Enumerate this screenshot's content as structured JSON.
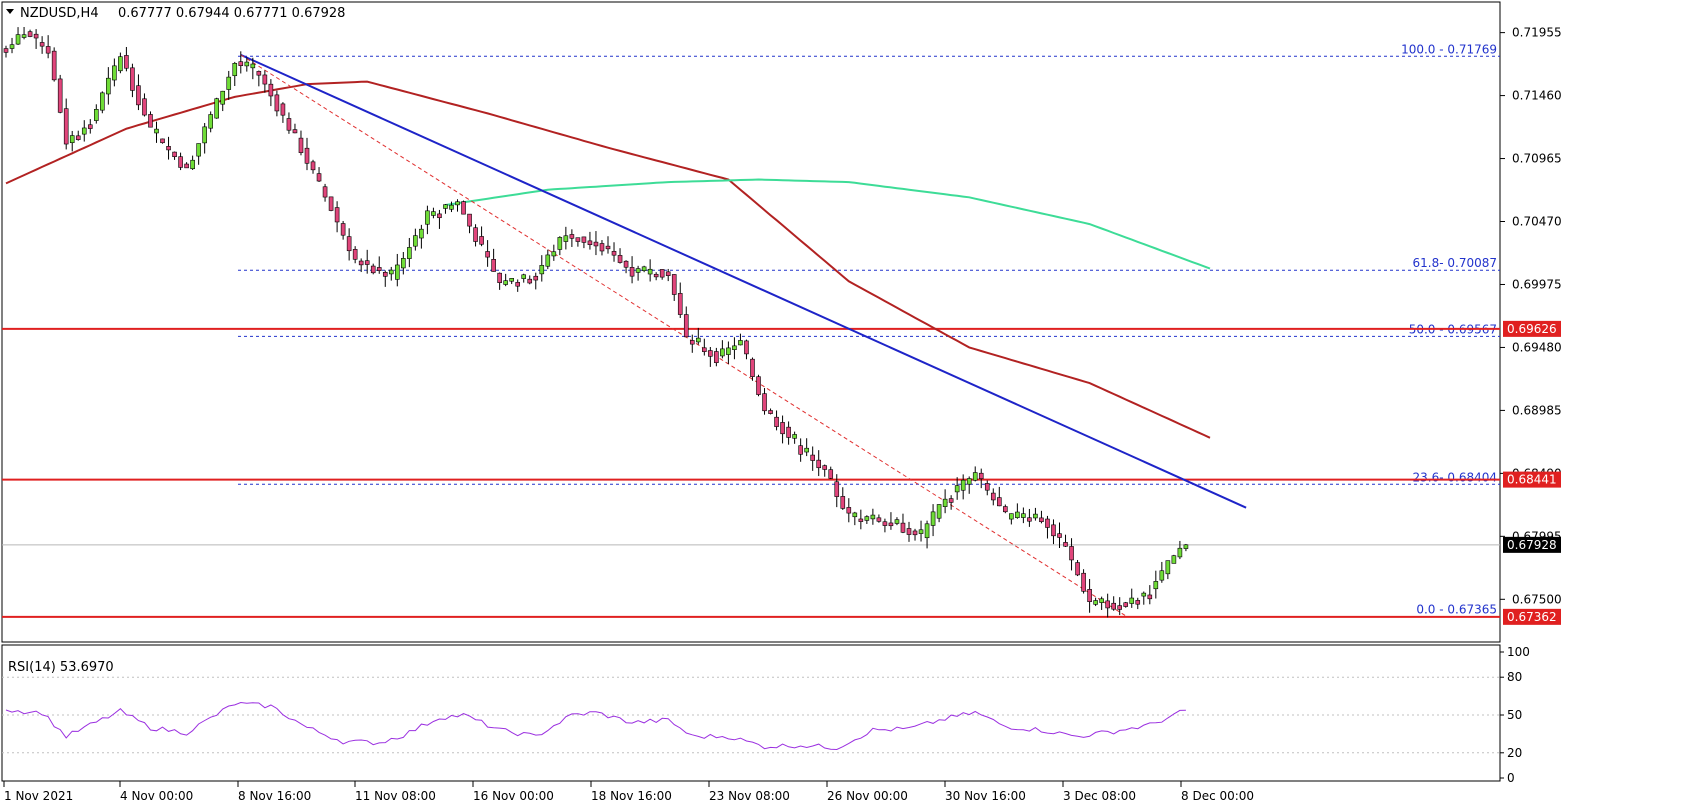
{
  "header": {
    "symbol": "NZDUSD,H4",
    "ohlc": "0.67777 0.67944 0.67771 0.67928"
  },
  "colors": {
    "bull": "#6fdc37",
    "bear": "#e0457b",
    "ma_red": "#b22222",
    "ma_green": "#3ddc97",
    "trendline": "#1e24c8",
    "fib_line": "#2233cc",
    "hline": "#e02020",
    "rsi": "#9b30e0",
    "price_tag": "#000000"
  },
  "chart_data": {
    "type": "candlestick",
    "title": "NZDUSD,H4",
    "price_axis": {
      "range": [
        0.6718,
        0.7218
      ],
      "ticks": [
        "0.71955",
        "0.71460",
        "0.70965",
        "0.70470",
        "0.69975",
        "0.69480",
        "0.68985",
        "0.68490",
        "0.67995",
        "0.67500"
      ]
    },
    "time_axis": {
      "labels": [
        "1 Nov 2021",
        "4 Nov 00:00",
        "8 Nov 16:00",
        "11 Nov 08:00",
        "16 Nov 00:00",
        "18 Nov 16:00",
        "23 Nov 08:00",
        "26 Nov 00:00",
        "30 Nov 16:00",
        "3 Dec 08:00",
        "8 Dec 00:00"
      ]
    },
    "candle_count": 197,
    "keypoints": [
      {
        "i": 0,
        "p": 0.7183
      },
      {
        "i": 3,
        "p": 0.7196
      },
      {
        "i": 7,
        "p": 0.7182
      },
      {
        "i": 10,
        "p": 0.711
      },
      {
        "i": 14,
        "p": 0.7125
      },
      {
        "i": 19,
        "p": 0.7178
      },
      {
        "i": 24,
        "p": 0.7118
      },
      {
        "i": 30,
        "p": 0.7088
      },
      {
        "i": 38,
        "p": 0.7172
      },
      {
        "i": 42,
        "p": 0.7162
      },
      {
        "i": 48,
        "p": 0.7113
      },
      {
        "i": 54,
        "p": 0.7057
      },
      {
        "i": 58,
        "p": 0.7017
      },
      {
        "i": 64,
        "p": 0.7003
      },
      {
        "i": 70,
        "p": 0.7052
      },
      {
        "i": 75,
        "p": 0.7062
      },
      {
        "i": 82,
        "p": 0.6998
      },
      {
        "i": 88,
        "p": 0.7006
      },
      {
        "i": 93,
        "p": 0.7038
      },
      {
        "i": 100,
        "p": 0.7024
      },
      {
        "i": 104,
        "p": 0.7008
      },
      {
        "i": 110,
        "p": 0.7007
      },
      {
        "i": 113,
        "p": 0.6955
      },
      {
        "i": 118,
        "p": 0.694
      },
      {
        "i": 122,
        "p": 0.6952
      },
      {
        "i": 126,
        "p": 0.69
      },
      {
        "i": 132,
        "p": 0.6867
      },
      {
        "i": 136,
        "p": 0.685
      },
      {
        "i": 140,
        "p": 0.6815
      },
      {
        "i": 146,
        "p": 0.6812
      },
      {
        "i": 152,
        "p": 0.68
      },
      {
        "i": 156,
        "p": 0.683
      },
      {
        "i": 161,
        "p": 0.6848
      },
      {
        "i": 166,
        "p": 0.6815
      },
      {
        "i": 172,
        "p": 0.6815
      },
      {
        "i": 176,
        "p": 0.679
      },
      {
        "i": 180,
        "p": 0.6748
      },
      {
        "i": 186,
        "p": 0.6745
      },
      {
        "i": 190,
        "p": 0.6757
      },
      {
        "i": 194,
        "p": 0.6783
      },
      {
        "i": 196,
        "p": 0.6793
      }
    ],
    "ma_red": [
      {
        "i": 0,
        "p": 0.7077
      },
      {
        "i": 20,
        "p": 0.712
      },
      {
        "i": 38,
        "p": 0.7145
      },
      {
        "i": 50,
        "p": 0.7155
      },
      {
        "i": 60,
        "p": 0.7157
      },
      {
        "i": 80,
        "p": 0.7132
      },
      {
        "i": 100,
        "p": 0.7105
      },
      {
        "i": 120,
        "p": 0.708
      },
      {
        "i": 140,
        "p": 0.7
      },
      {
        "i": 160,
        "p": 0.6948
      },
      {
        "i": 180,
        "p": 0.692
      },
      {
        "i": 200,
        "p": 0.6877
      }
    ],
    "ma_green": [
      {
        "i": 73,
        "p": 0.706
      },
      {
        "i": 90,
        "p": 0.7072
      },
      {
        "i": 110,
        "p": 0.7078
      },
      {
        "i": 125,
        "p": 0.708
      },
      {
        "i": 140,
        "p": 0.7078
      },
      {
        "i": 160,
        "p": 0.7066
      },
      {
        "i": 180,
        "p": 0.7045
      },
      {
        "i": 200,
        "p": 0.701
      }
    ],
    "trendline": {
      "from": {
        "i": 39,
        "p": 0.7178
      },
      "to": {
        "i": 206,
        "p": 0.6822
      }
    },
    "dashed_channel": {
      "from": {
        "i": 39,
        "p": 0.7178
      },
      "to": {
        "i": 186,
        "p": 0.6737
      }
    },
    "fibonacci": [
      {
        "label": "100.0 - 0.71769",
        "p": 0.71769
      },
      {
        "label": "61.8- 0.70087",
        "p": 0.70087
      },
      {
        "label": "50.0 - 0.69567",
        "p": 0.69567
      },
      {
        "label": "23.6- 0.68404",
        "p": 0.68404
      },
      {
        "label": "0.0 - 0.67365",
        "p": 0.67365
      }
    ],
    "horizontal_levels": [
      {
        "label": "0.69626",
        "p": 0.69626
      },
      {
        "label": "0.68441",
        "p": 0.68441
      },
      {
        "label": "0.67362",
        "p": 0.67362
      }
    ],
    "current_price": {
      "label": "0.67928",
      "p": 0.67928
    },
    "rsi": {
      "label": "RSI(14) 53.6970",
      "ticks": [
        "100",
        "80",
        "50",
        "20",
        "0"
      ],
      "levels": [
        80,
        50,
        20
      ],
      "keypoints": [
        {
          "i": 0,
          "v": 54
        },
        {
          "i": 6,
          "v": 52
        },
        {
          "i": 10,
          "v": 33
        },
        {
          "i": 14,
          "v": 42
        },
        {
          "i": 19,
          "v": 53
        },
        {
          "i": 24,
          "v": 40
        },
        {
          "i": 30,
          "v": 36
        },
        {
          "i": 38,
          "v": 59
        },
        {
          "i": 44,
          "v": 57
        },
        {
          "i": 50,
          "v": 40
        },
        {
          "i": 56,
          "v": 29
        },
        {
          "i": 62,
          "v": 28
        },
        {
          "i": 66,
          "v": 34
        },
        {
          "i": 72,
          "v": 48
        },
        {
          "i": 76,
          "v": 50
        },
        {
          "i": 82,
          "v": 38
        },
        {
          "i": 88,
          "v": 33
        },
        {
          "i": 94,
          "v": 50
        },
        {
          "i": 98,
          "v": 52
        },
        {
          "i": 104,
          "v": 44
        },
        {
          "i": 110,
          "v": 46
        },
        {
          "i": 114,
          "v": 33
        },
        {
          "i": 120,
          "v": 33
        },
        {
          "i": 126,
          "v": 25
        },
        {
          "i": 132,
          "v": 26
        },
        {
          "i": 138,
          "v": 24
        },
        {
          "i": 144,
          "v": 38
        },
        {
          "i": 150,
          "v": 39
        },
        {
          "i": 156,
          "v": 47
        },
        {
          "i": 161,
          "v": 52
        },
        {
          "i": 166,
          "v": 41
        },
        {
          "i": 172,
          "v": 38
        },
        {
          "i": 178,
          "v": 33
        },
        {
          "i": 184,
          "v": 37
        },
        {
          "i": 190,
          "v": 42
        },
        {
          "i": 196,
          "v": 53.7
        }
      ]
    }
  }
}
